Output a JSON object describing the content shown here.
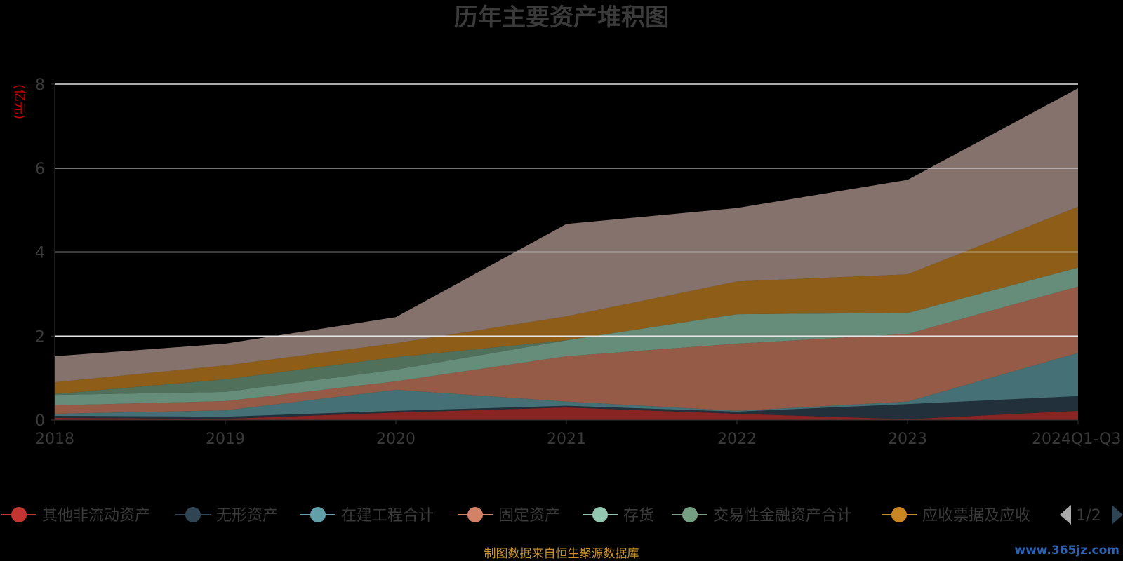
{
  "chart_data": {
    "type": "area",
    "title": "历年主要资产堆积图",
    "ylabel": "(亿元)",
    "categories": [
      "2018",
      "2019",
      "2020",
      "2021",
      "2022",
      "2023",
      "2024Q1-Q3"
    ],
    "ylim": [
      0,
      8
    ],
    "yticks": [
      0,
      2,
      4,
      6,
      8
    ],
    "stacked": true,
    "grid": true,
    "series": [
      {
        "name": "其他非流动资产",
        "color": "#c23531",
        "values": [
          0.05,
          0.03,
          0.18,
          0.3,
          0.15,
          0.02,
          0.22
        ]
      },
      {
        "name": "无形资产",
        "color": "#2f4554",
        "values": [
          0.05,
          0.05,
          0.04,
          0.04,
          0.05,
          0.36,
          0.35
        ]
      },
      {
        "name": "在建工程合计",
        "color": "#61a0a8",
        "values": [
          0.05,
          0.15,
          0.5,
          0.1,
          0.02,
          0.06,
          1.03
        ]
      },
      {
        "name": "固定资产",
        "color": "#d48265",
        "values": [
          0.2,
          0.22,
          0.2,
          1.08,
          1.6,
          1.61,
          1.58
        ]
      },
      {
        "name": "存货",
        "color": "#91c7ae",
        "values": [
          0.25,
          0.22,
          0.28,
          0.38,
          0.7,
          0.5,
          0.45
        ]
      },
      {
        "name": "交易性金融资产合计",
        "color": "#749f83",
        "values": [
          0.02,
          0.3,
          0.3,
          0.0,
          0.0,
          0.0,
          0.0
        ]
      },
      {
        "name": "应收票据及应收",
        "color": "#ca8622",
        "values": [
          0.28,
          0.33,
          0.33,
          0.57,
          0.78,
          0.92,
          1.45
        ]
      },
      {
        "name": "",
        "color": "#bda29a",
        "values": [
          0.62,
          0.52,
          0.62,
          2.2,
          1.75,
          2.25,
          2.82
        ]
      }
    ],
    "legend": {
      "position": "bottom",
      "visible_count": 7,
      "page": "1/2"
    },
    "source_note": "制图数据来自恒生聚源数据库",
    "watermark": "www.365jz.com"
  }
}
